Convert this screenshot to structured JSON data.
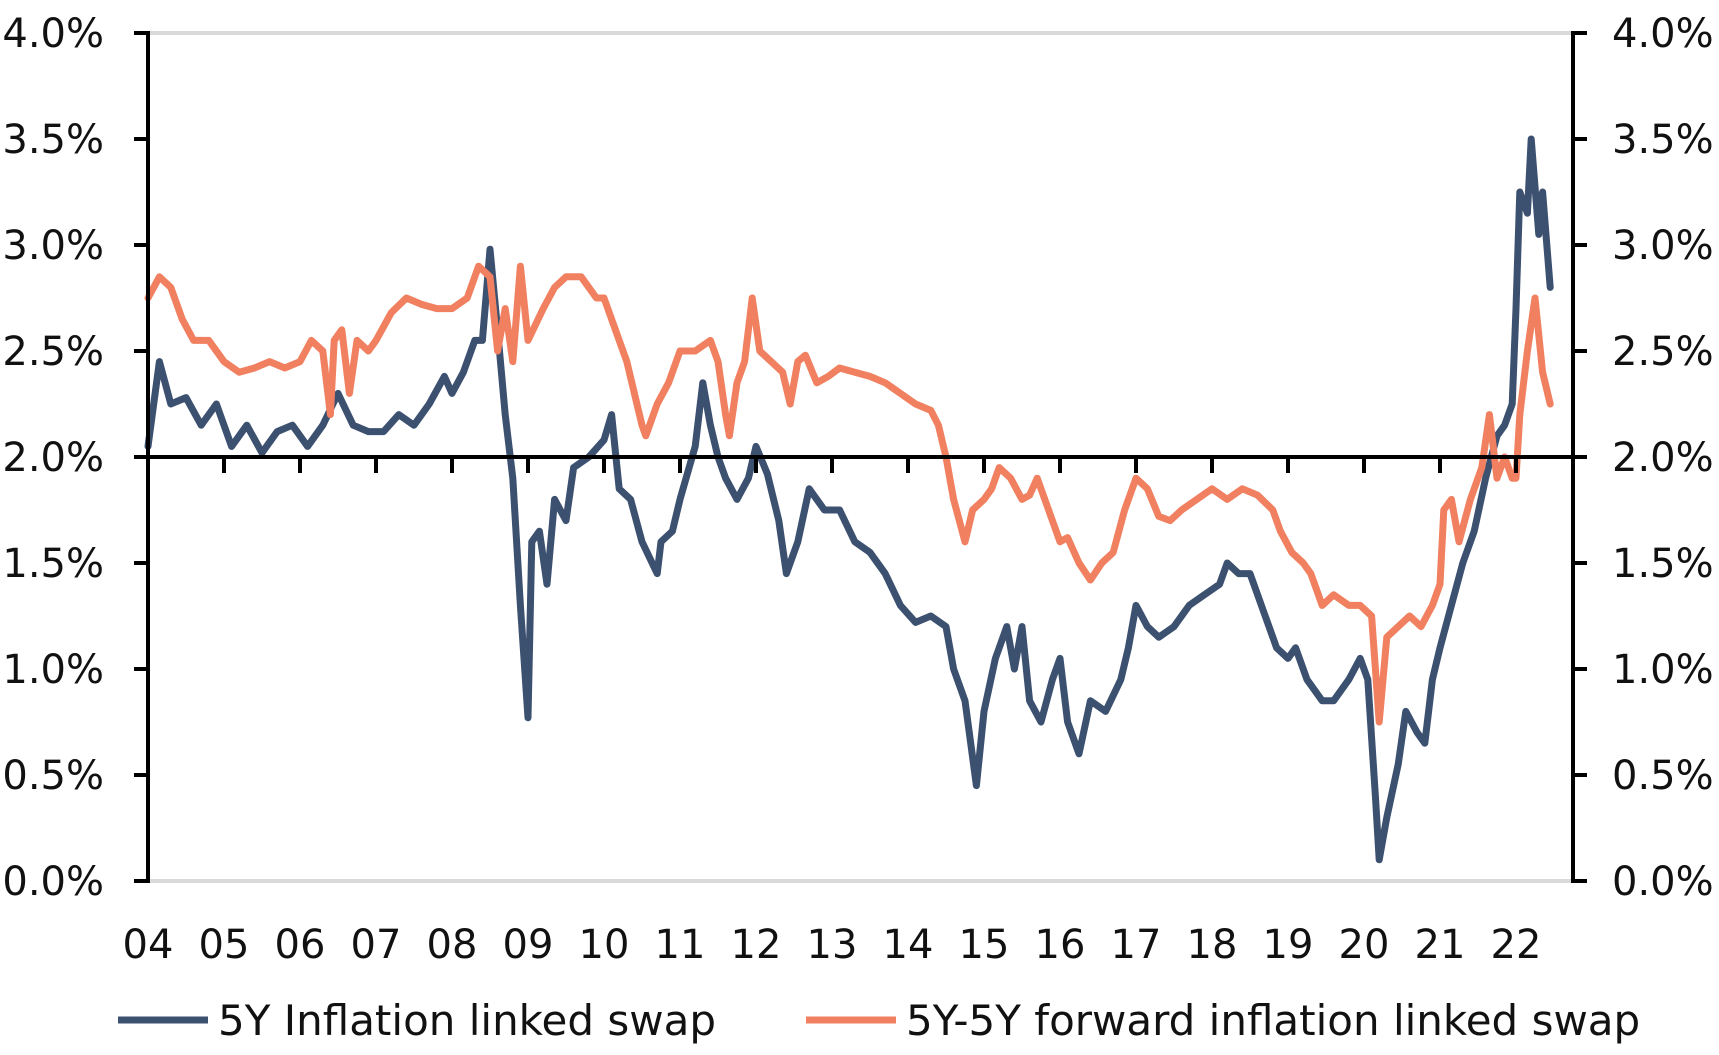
{
  "chart_data": {
    "type": "line",
    "title": "",
    "xlabel": "",
    "ylabel": "",
    "ylim": [
      0,
      4
    ],
    "y_ticks": [
      "0.0%",
      "0.5%",
      "1.0%",
      "1.5%",
      "2.0%",
      "2.5%",
      "3.0%",
      "3.5%",
      "4.0%"
    ],
    "y_tick_values": [
      0,
      0.5,
      1,
      1.5,
      2,
      2.5,
      3,
      3.5,
      4
    ],
    "x_ticks": [
      "04",
      "05",
      "06",
      "07",
      "08",
      "09",
      "10",
      "11",
      "12",
      "13",
      "14",
      "15",
      "16",
      "17",
      "18",
      "19",
      "20",
      "21",
      "22"
    ],
    "x_tick_values": [
      2004,
      2005,
      2006,
      2007,
      2008,
      2009,
      2010,
      2011,
      2012,
      2013,
      2014,
      2015,
      2016,
      2017,
      2018,
      2019,
      2020,
      2021,
      2022
    ],
    "xlim": [
      2004,
      2022.75
    ],
    "x_axis_crosses_at": 2.0,
    "dual_y_axis": true,
    "grid": false,
    "legend_position": "bottom",
    "series": [
      {
        "name": "5Y Inflation linked swap",
        "color": "#3c5070",
        "x": [
          2004.0,
          2004.15,
          2004.3,
          2004.5,
          2004.7,
          2004.9,
          2005.1,
          2005.3,
          2005.5,
          2005.7,
          2005.9,
          2006.1,
          2006.3,
          2006.5,
          2006.7,
          2006.9,
          2007.1,
          2007.3,
          2007.5,
          2007.7,
          2007.9,
          2008.0,
          2008.15,
          2008.3,
          2008.4,
          2008.5,
          2008.6,
          2008.7,
          2008.8,
          2008.9,
          2009.0,
          2009.05,
          2009.15,
          2009.25,
          2009.35,
          2009.5,
          2009.6,
          2009.8,
          2010.0,
          2010.1,
          2010.2,
          2010.35,
          2010.5,
          2010.7,
          2010.75,
          2010.9,
          2011.0,
          2011.2,
          2011.3,
          2011.4,
          2011.5,
          2011.6,
          2011.75,
          2011.9,
          2012.0,
          2012.15,
          2012.3,
          2012.4,
          2012.55,
          2012.7,
          2012.9,
          2013.1,
          2013.3,
          2013.5,
          2013.7,
          2013.9,
          2014.1,
          2014.3,
          2014.5,
          2014.6,
          2014.75,
          2014.9,
          2015.0,
          2015.15,
          2015.3,
          2015.4,
          2015.5,
          2015.6,
          2015.75,
          2015.9,
          2016.0,
          2016.1,
          2016.25,
          2016.4,
          2016.6,
          2016.8,
          2016.9,
          2017.0,
          2017.15,
          2017.3,
          2017.5,
          2017.7,
          2017.9,
          2018.1,
          2018.2,
          2018.35,
          2018.5,
          2018.7,
          2018.85,
          2019.0,
          2019.1,
          2019.25,
          2019.45,
          2019.6,
          2019.8,
          2019.95,
          2020.05,
          2020.15,
          2020.2,
          2020.3,
          2020.45,
          2020.55,
          2020.7,
          2020.8,
          2020.9,
          2021.0,
          2021.15,
          2021.3,
          2021.45,
          2021.6,
          2021.75,
          2021.85,
          2021.95,
          2022.0,
          2022.05,
          2022.15,
          2022.2,
          2022.3,
          2022.35,
          2022.45
        ],
        "values": [
          2.05,
          2.45,
          2.25,
          2.28,
          2.15,
          2.25,
          2.05,
          2.15,
          2.02,
          2.12,
          2.15,
          2.05,
          2.15,
          2.3,
          2.15,
          2.12,
          2.12,
          2.2,
          2.15,
          2.25,
          2.38,
          2.3,
          2.4,
          2.55,
          2.55,
          2.98,
          2.6,
          2.2,
          1.9,
          1.3,
          0.77,
          1.6,
          1.65,
          1.4,
          1.8,
          1.7,
          1.95,
          2.0,
          2.08,
          2.2,
          1.85,
          1.8,
          1.6,
          1.45,
          1.6,
          1.65,
          1.8,
          2.05,
          2.35,
          2.15,
          2.0,
          1.9,
          1.8,
          1.9,
          2.05,
          1.92,
          1.7,
          1.45,
          1.6,
          1.85,
          1.75,
          1.75,
          1.6,
          1.55,
          1.45,
          1.3,
          1.22,
          1.25,
          1.2,
          1.0,
          0.85,
          0.45,
          0.8,
          1.05,
          1.2,
          1.0,
          1.2,
          0.85,
          0.75,
          0.95,
          1.05,
          0.75,
          0.6,
          0.85,
          0.8,
          0.95,
          1.1,
          1.3,
          1.2,
          1.15,
          1.2,
          1.3,
          1.35,
          1.4,
          1.5,
          1.45,
          1.45,
          1.25,
          1.1,
          1.05,
          1.1,
          0.95,
          0.85,
          0.85,
          0.95,
          1.05,
          0.95,
          0.4,
          0.1,
          0.3,
          0.55,
          0.8,
          0.7,
          0.65,
          0.95,
          1.1,
          1.3,
          1.5,
          1.65,
          1.9,
          2.1,
          2.15,
          2.25,
          2.7,
          3.25,
          3.15,
          3.5,
          3.05,
          3.25,
          2.8
        ]
      },
      {
        "name": "5Y-5Y forward inflation linked swap",
        "color": "#f08060",
        "x": [
          2004.0,
          2004.15,
          2004.3,
          2004.45,
          2004.6,
          2004.8,
          2005.0,
          2005.2,
          2005.4,
          2005.6,
          2005.8,
          2006.0,
          2006.15,
          2006.3,
          2006.4,
          2006.45,
          2006.55,
          2006.65,
          2006.75,
          2006.9,
          2007.0,
          2007.2,
          2007.4,
          2007.6,
          2007.8,
          2008.0,
          2008.2,
          2008.35,
          2008.5,
          2008.6,
          2008.7,
          2008.8,
          2008.9,
          2009.0,
          2009.2,
          2009.35,
          2009.5,
          2009.7,
          2009.9,
          2010.0,
          2010.15,
          2010.3,
          2010.4,
          2010.5,
          2010.55,
          2010.7,
          2010.85,
          2011.0,
          2011.2,
          2011.4,
          2011.5,
          2011.6,
          2011.65,
          2011.75,
          2011.85,
          2011.95,
          2012.05,
          2012.2,
          2012.35,
          2012.45,
          2012.55,
          2012.65,
          2012.8,
          2012.95,
          2013.1,
          2013.3,
          2013.5,
          2013.7,
          2013.9,
          2014.1,
          2014.3,
          2014.4,
          2014.5,
          2014.6,
          2014.75,
          2014.85,
          2015.0,
          2015.1,
          2015.2,
          2015.35,
          2015.5,
          2015.6,
          2015.7,
          2015.85,
          2016.0,
          2016.1,
          2016.25,
          2016.4,
          2016.55,
          2016.7,
          2016.85,
          2017.0,
          2017.15,
          2017.3,
          2017.45,
          2017.6,
          2017.8,
          2018.0,
          2018.2,
          2018.4,
          2018.6,
          2018.8,
          2018.9,
          2019.05,
          2019.2,
          2019.3,
          2019.45,
          2019.6,
          2019.8,
          2019.95,
          2020.1,
          2020.2,
          2020.3,
          2020.45,
          2020.6,
          2020.75,
          2020.9,
          2021.0,
          2021.05,
          2021.15,
          2021.25,
          2021.4,
          2021.55,
          2021.65,
          2021.75,
          2021.85,
          2021.95,
          2022.0,
          2022.05,
          2022.15,
          2022.25,
          2022.35,
          2022.45
        ],
        "values": [
          2.75,
          2.85,
          2.8,
          2.65,
          2.55,
          2.55,
          2.45,
          2.4,
          2.42,
          2.45,
          2.42,
          2.45,
          2.55,
          2.5,
          2.2,
          2.55,
          2.6,
          2.3,
          2.55,
          2.5,
          2.55,
          2.68,
          2.75,
          2.72,
          2.7,
          2.7,
          2.75,
          2.9,
          2.85,
          2.5,
          2.7,
          2.45,
          2.9,
          2.55,
          2.7,
          2.8,
          2.85,
          2.85,
          2.75,
          2.75,
          2.6,
          2.45,
          2.3,
          2.15,
          2.1,
          2.25,
          2.35,
          2.5,
          2.5,
          2.55,
          2.45,
          2.2,
          2.1,
          2.35,
          2.45,
          2.75,
          2.5,
          2.45,
          2.4,
          2.25,
          2.45,
          2.48,
          2.35,
          2.38,
          2.42,
          2.4,
          2.38,
          2.35,
          2.3,
          2.25,
          2.22,
          2.15,
          2.0,
          1.8,
          1.6,
          1.75,
          1.8,
          1.85,
          1.95,
          1.9,
          1.8,
          1.82,
          1.9,
          1.75,
          1.6,
          1.62,
          1.5,
          1.42,
          1.5,
          1.55,
          1.75,
          1.9,
          1.85,
          1.72,
          1.7,
          1.75,
          1.8,
          1.85,
          1.8,
          1.85,
          1.82,
          1.75,
          1.65,
          1.55,
          1.5,
          1.45,
          1.3,
          1.35,
          1.3,
          1.3,
          1.25,
          0.75,
          1.15,
          1.2,
          1.25,
          1.2,
          1.3,
          1.4,
          1.75,
          1.8,
          1.6,
          1.8,
          1.95,
          2.2,
          1.9,
          2.0,
          1.9,
          1.9,
          2.2,
          2.5,
          2.75,
          2.4,
          2.25
        ]
      }
    ]
  }
}
